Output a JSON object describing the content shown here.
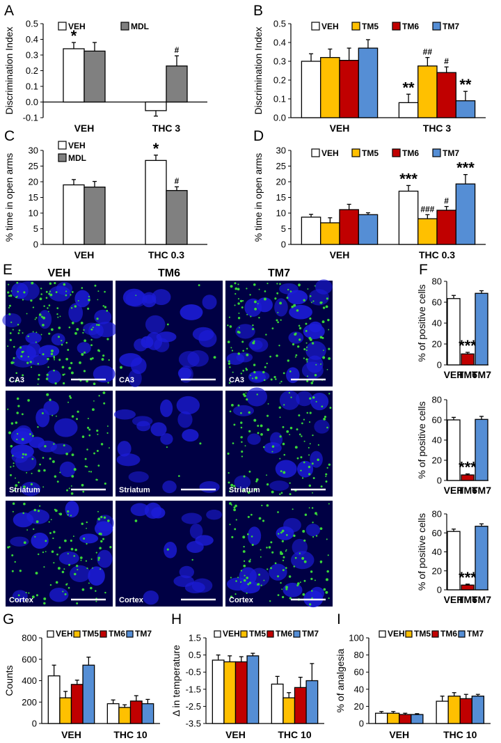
{
  "colors": {
    "veh": "#ffffff",
    "mdl": "#808080",
    "tm5": "#ffc000",
    "tm6": "#c00000",
    "tm7": "#558ed5",
    "micro_bg": "#000044",
    "nuclei": "#1c1cd8",
    "puncta": "#39d639"
  },
  "micro": {
    "columns": [
      "VEH",
      "TM6",
      "TM7"
    ],
    "rows": [
      "CA3",
      "Striatum",
      "Cortex"
    ],
    "puncta_level": [
      [
        1,
        0.03,
        0.9
      ],
      [
        0.6,
        0.02,
        0.7
      ],
      [
        0.65,
        0.02,
        0.75
      ]
    ]
  },
  "chart_data": [
    {
      "panel": "A",
      "type": "bar",
      "categories": [
        "VEH",
        "THC 3"
      ],
      "series": [
        {
          "name": "VEH",
          "color": "veh",
          "values": [
            0.34,
            -0.055
          ],
          "errors": [
            0.04,
            0.035
          ]
        },
        {
          "name": "MDL",
          "color": "mdl",
          "values": [
            0.325,
            0.23
          ],
          "errors": [
            0.055,
            0.065
          ]
        }
      ],
      "annotations": [
        [
          "*",
          null
        ],
        [
          null,
          "#"
        ]
      ],
      "ylabel": "Discrimination Index",
      "ylim": [
        -0.1,
        0.5
      ],
      "yticks": [
        "-0.1",
        "0.0",
        "0.1",
        "0.2",
        "0.3",
        "0.4",
        "0.5"
      ],
      "legend": [
        "VEH",
        "MDL"
      ]
    },
    {
      "panel": "B",
      "type": "bar",
      "categories": [
        "VEH",
        "THC 3"
      ],
      "series": [
        {
          "name": "VEH",
          "color": "veh",
          "values": [
            0.3,
            0.08
          ],
          "errors": [
            0.04,
            0.045
          ]
        },
        {
          "name": "TM5",
          "color": "tm5",
          "values": [
            0.32,
            0.275
          ],
          "errors": [
            0.045,
            0.045
          ]
        },
        {
          "name": "TM6",
          "color": "tm6",
          "values": [
            0.305,
            0.24
          ],
          "errors": [
            0.065,
            0.03
          ]
        },
        {
          "name": "TM7",
          "color": "tm7",
          "values": [
            0.37,
            0.09
          ],
          "errors": [
            0.045,
            0.05
          ]
        }
      ],
      "annotations": [
        [
          null,
          "**"
        ],
        [
          null,
          "##"
        ],
        [
          null,
          "#"
        ],
        [
          null,
          "**"
        ]
      ],
      "ylabel": "Discrimination Index",
      "ylim": [
        0,
        0.5
      ],
      "yticks": [
        "0.0",
        "0.1",
        "0.2",
        "0.3",
        "0.4",
        "0.5"
      ],
      "legend": [
        "VEH",
        "TM5",
        "TM6",
        "TM7"
      ]
    },
    {
      "panel": "C",
      "type": "bar",
      "categories": [
        "VEH",
        "THC 0.3"
      ],
      "series": [
        {
          "name": "VEH",
          "color": "veh",
          "values": [
            19,
            26.8
          ],
          "errors": [
            1.7,
            1.7
          ]
        },
        {
          "name": "MDL",
          "color": "mdl",
          "values": [
            18.3,
            17.2
          ],
          "errors": [
            1.8,
            1.2
          ]
        }
      ],
      "annotations": [
        [
          null,
          "*"
        ],
        [
          null,
          "#"
        ]
      ],
      "ylabel": "% time in open arms",
      "ylim": [
        0,
        30
      ],
      "yticks": [
        "0",
        "5",
        "10",
        "15",
        "20",
        "25",
        "30"
      ],
      "legend": [
        "VEH",
        "MDL"
      ]
    },
    {
      "panel": "D",
      "type": "bar",
      "categories": [
        "VEH",
        "THC 0.3"
      ],
      "series": [
        {
          "name": "VEH",
          "color": "veh",
          "values": [
            8.7,
            17
          ],
          "errors": [
            0.9,
            1.8
          ]
        },
        {
          "name": "TM5",
          "color": "tm5",
          "values": [
            6.9,
            8.2
          ],
          "errors": [
            1.6,
            1.3
          ]
        },
        {
          "name": "TM6",
          "color": "tm6",
          "values": [
            11.1,
            10.9
          ],
          "errors": [
            1.7,
            1.2
          ]
        },
        {
          "name": "TM7",
          "color": "tm7",
          "values": [
            9.5,
            19.3
          ],
          "errors": [
            0.6,
            3
          ]
        }
      ],
      "annotations": [
        [
          null,
          "***"
        ],
        [
          null,
          "###"
        ],
        [
          null,
          "#"
        ],
        [
          null,
          "***"
        ]
      ],
      "ylabel": "% time in open arms",
      "ylim": [
        0,
        30
      ],
      "yticks": [
        "0",
        "5",
        "10",
        "15",
        "20",
        "25",
        "30"
      ],
      "legend": [
        "VEH",
        "TM5",
        "TM6",
        "TM7"
      ]
    },
    {
      "panel": "F1",
      "type": "bar",
      "categories": [
        "VEH",
        "TM6",
        "TM7"
      ],
      "series": [
        {
          "name": "",
          "colors": [
            "veh",
            "tm6",
            "tm7"
          ],
          "values": [
            63.5,
            10.5,
            68.5
          ],
          "errors": [
            3,
            1.5,
            2.5
          ]
        }
      ],
      "annotations": [
        [
          null,
          "***",
          null
        ]
      ],
      "ylabel": "% of positive cells",
      "ylim": [
        0,
        80
      ],
      "yticks": [
        "0",
        "20",
        "40",
        "60",
        "80"
      ],
      "legend": []
    },
    {
      "panel": "F2",
      "type": "bar",
      "categories": [
        "VEH",
        "TM6",
        "TM7"
      ],
      "series": [
        {
          "name": "",
          "colors": [
            "veh",
            "tm6",
            "tm7"
          ],
          "values": [
            60,
            5.5,
            60.5
          ],
          "errors": [
            2.5,
            1,
            3
          ]
        }
      ],
      "annotations": [
        [
          null,
          "***",
          null
        ]
      ],
      "ylabel": "% of positive cells",
      "ylim": [
        0,
        80
      ],
      "yticks": [
        "0",
        "20",
        "40",
        "60",
        "80"
      ],
      "legend": []
    },
    {
      "panel": "F3",
      "type": "bar",
      "categories": [
        "VEH",
        "TM6",
        "TM7"
      ],
      "series": [
        {
          "name": "",
          "colors": [
            "veh",
            "tm6",
            "tm7"
          ],
          "values": [
            61.5,
            5,
            67
          ],
          "errors": [
            2.5,
            1,
            2.5
          ]
        }
      ],
      "annotations": [
        [
          null,
          "***",
          null
        ]
      ],
      "ylabel": "% of positive cells",
      "ylim": [
        0,
        80
      ],
      "yticks": [
        "0",
        "20",
        "40",
        "60",
        "80"
      ],
      "legend": []
    },
    {
      "panel": "G",
      "type": "bar",
      "categories": [
        "VEH",
        "THC 10"
      ],
      "series": [
        {
          "name": "VEH",
          "color": "veh",
          "values": [
            445,
            185
          ],
          "errors": [
            100,
            35
          ]
        },
        {
          "name": "TM5",
          "color": "tm5",
          "values": [
            240,
            150
          ],
          "errors": [
            60,
            25
          ]
        },
        {
          "name": "TM6",
          "color": "tm6",
          "values": [
            365,
            210
          ],
          "errors": [
            40,
            50
          ]
        },
        {
          "name": "TM7",
          "color": "tm7",
          "values": [
            545,
            185
          ],
          "errors": [
            75,
            40
          ]
        }
      ],
      "annotations": [],
      "ylabel": "Counts",
      "ylim": [
        0,
        800
      ],
      "yticks": [
        "0",
        "200",
        "400",
        "600",
        "800"
      ],
      "legend": [
        "VEH",
        "TM5",
        "TM6",
        "TM7"
      ]
    },
    {
      "panel": "H",
      "type": "bar",
      "categories": [
        "VEH",
        "THC 10"
      ],
      "series": [
        {
          "name": "VEH",
          "color": "veh",
          "values": [
            0.2,
            -1.2
          ],
          "errors": [
            0.3,
            0.45
          ]
        },
        {
          "name": "TM5",
          "color": "tm5",
          "values": [
            0.1,
            -2
          ],
          "errors": [
            0.35,
            0.3
          ]
        },
        {
          "name": "TM6",
          "color": "tm6",
          "values": [
            0.1,
            -1.4
          ],
          "errors": [
            0.3,
            0.6
          ]
        },
        {
          "name": "TM7",
          "color": "tm7",
          "values": [
            0.45,
            -1
          ],
          "errors": [
            0.15,
            1
          ]
        }
      ],
      "annotations": [],
      "ylabel": "Δ in temperature",
      "ylim": [
        -3.5,
        1.5
      ],
      "baseline": -3.5,
      "yticks": [
        "-3.5",
        "-2.5",
        "-1.5",
        "-0.5",
        "0.5",
        "1.5"
      ],
      "legend": [
        "VEH",
        "TM5",
        "TM6",
        "TM7"
      ]
    },
    {
      "panel": "I",
      "type": "bar",
      "categories": [
        "VEH",
        "THC 10"
      ],
      "series": [
        {
          "name": "VEH",
          "color": "veh",
          "values": [
            12,
            26
          ],
          "errors": [
            2,
            6
          ]
        },
        {
          "name": "TM5",
          "color": "tm5",
          "values": [
            12,
            32
          ],
          "errors": [
            2,
            4
          ]
        },
        {
          "name": "TM6",
          "color": "tm6",
          "values": [
            10.5,
            29
          ],
          "errors": [
            1.5,
            5
          ]
        },
        {
          "name": "TM7",
          "color": "tm7",
          "values": [
            10.5,
            32
          ],
          "errors": [
            1,
            2
          ]
        }
      ],
      "annotations": [],
      "ylabel": "% of analgesia",
      "ylim": [
        0,
        100
      ],
      "yticks": [
        "0",
        "20",
        "40",
        "60",
        "80",
        "100"
      ],
      "legend": [
        "VEH",
        "TM5",
        "TM6",
        "TM7"
      ]
    }
  ]
}
